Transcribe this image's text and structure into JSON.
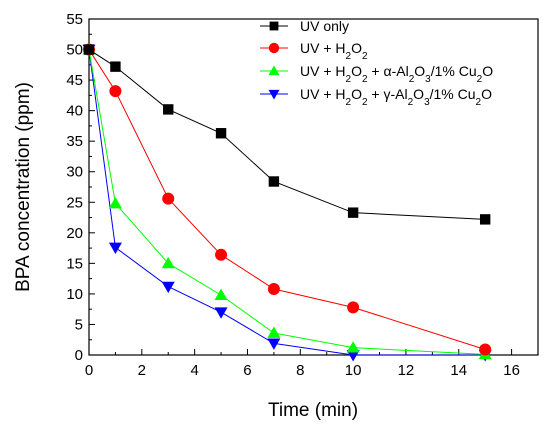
{
  "chart_data": {
    "type": "line",
    "xlabel": "Time (min)",
    "ylabel": "BPA concentration (ppm)",
    "xlim": [
      0,
      17
    ],
    "ylim": [
      0,
      55
    ],
    "xticks": [
      0,
      2,
      4,
      6,
      8,
      10,
      12,
      14,
      16
    ],
    "yticks": [
      0,
      5,
      10,
      15,
      20,
      25,
      30,
      35,
      40,
      45,
      50,
      55
    ],
    "legend_position": "top-right",
    "grid": false,
    "series": [
      {
        "name": "UV only",
        "color": "#000000",
        "marker": "square",
        "x": [
          0,
          1,
          3,
          5,
          7,
          10,
          15
        ],
        "y": [
          50.0,
          47.2,
          40.2,
          36.3,
          28.4,
          23.3,
          22.2
        ]
      },
      {
        "name": "UV + H2O2",
        "color": "#ff0000",
        "marker": "circle",
        "x": [
          0,
          1,
          3,
          5,
          7,
          10,
          15
        ],
        "y": [
          50.0,
          43.2,
          25.6,
          16.4,
          10.8,
          7.8,
          0.9
        ]
      },
      {
        "name": "UV + H2O2 + α-Al2O3/1% Cu2O",
        "color": "#00ff00",
        "marker": "triangle-up",
        "x": [
          0,
          1,
          3,
          5,
          7,
          10,
          15
        ],
        "y": [
          50.0,
          24.8,
          15.0,
          9.8,
          3.6,
          1.2,
          0.1
        ]
      },
      {
        "name": "UV + H2O2 + γ-Al2O3/1% Cu2O",
        "color": "#0000ff",
        "marker": "triangle-down",
        "x": [
          0,
          1,
          3,
          5,
          7,
          10,
          15
        ],
        "y": [
          50.0,
          17.6,
          11.2,
          7.0,
          1.9,
          0.0,
          0.0
        ]
      }
    ]
  }
}
